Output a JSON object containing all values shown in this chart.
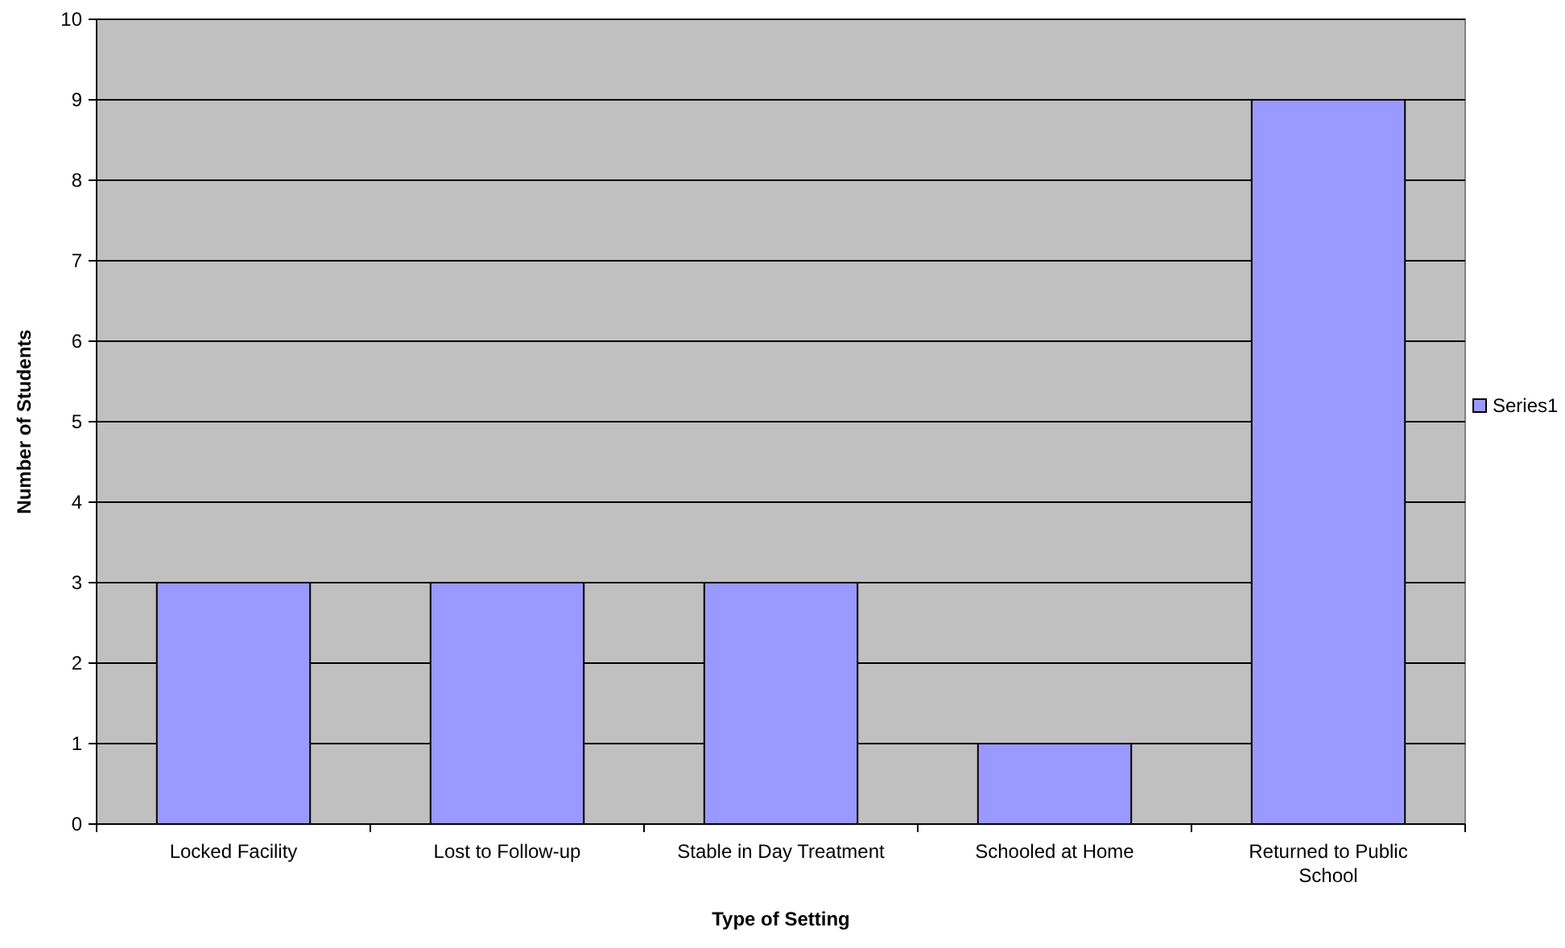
{
  "chart_data": {
    "type": "bar",
    "xlabel": "Type of Setting",
    "ylabel": "Number of Students",
    "categories": [
      "Locked Facility",
      "Lost to Follow-up",
      "Stable in Day Treatment",
      "Schooled at Home",
      "Returned to Public School"
    ],
    "series": [
      {
        "name": "Series1",
        "color": "#9999ff",
        "values": [
          3,
          3,
          3,
          1,
          9
        ]
      }
    ],
    "ylim": [
      0,
      10
    ],
    "yticks": [
      0,
      1,
      2,
      3,
      4,
      5,
      6,
      7,
      8,
      9,
      10
    ],
    "grid": "y",
    "legend": "right"
  }
}
